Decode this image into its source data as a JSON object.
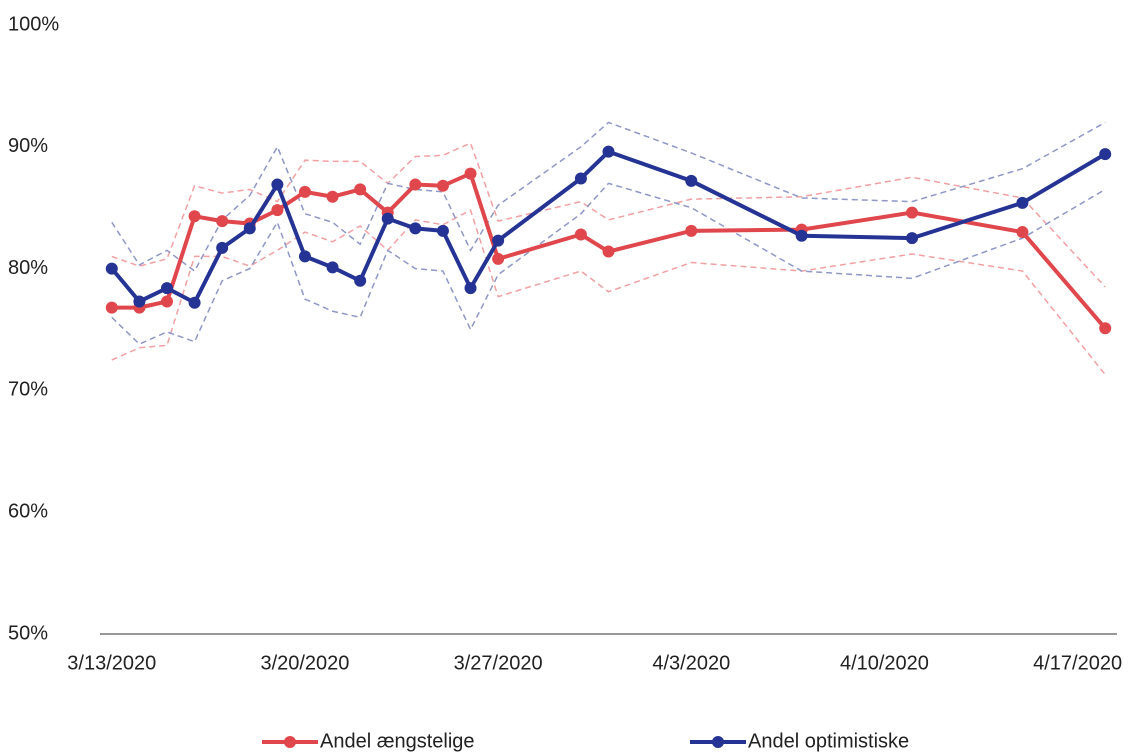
{
  "chart_data": {
    "type": "line",
    "x": [
      "2020-03-13",
      "2020-03-14",
      "2020-03-15",
      "2020-03-16",
      "2020-03-17",
      "2020-03-18",
      "2020-03-19",
      "2020-03-20",
      "2020-03-21",
      "2020-03-22",
      "2020-03-23",
      "2020-03-24",
      "2020-03-25",
      "2020-03-26",
      "2020-03-27",
      "2020-03-30",
      "2020-03-31",
      "2020-04-03",
      "2020-04-07",
      "2020-04-11",
      "2020-04-15",
      "2020-04-18"
    ],
    "series": [
      {
        "name": "Andel ængstelige",
        "color": "#e0474c",
        "values": [
          76.8,
          76.8,
          77.3,
          84.3,
          83.9,
          83.7,
          84.8,
          86.3,
          85.9,
          86.5,
          84.6,
          86.9,
          86.8,
          87.8,
          80.8,
          82.8,
          81.4,
          83.1,
          83.2,
          84.6,
          83.0,
          75.1
        ]
      },
      {
        "name": "Andel optimistiske",
        "color": "#253494",
        "values": [
          80.0,
          77.3,
          78.4,
          77.2,
          81.7,
          83.3,
          86.9,
          81.0,
          80.1,
          79.0,
          84.1,
          83.3,
          83.1,
          78.4,
          82.3,
          87.4,
          89.6,
          87.2,
          82.7,
          82.5,
          85.4,
          89.4
        ]
      },
      {
        "color": "#f2a0a2",
        "dashed": true,
        "values": [
          81.0,
          80.2,
          80.8,
          86.8,
          86.2,
          86.5,
          85.5,
          88.9,
          88.8,
          88.8,
          87.0,
          89.2,
          89.3,
          90.3,
          83.9,
          85.5,
          84.0,
          85.7,
          85.9,
          87.5,
          85.8,
          78.5
        ]
      },
      {
        "color": "#f2a0a2",
        "dashed": true,
        "values": [
          72.5,
          73.5,
          73.7,
          81.0,
          81.0,
          80.2,
          81.5,
          83.0,
          82.2,
          83.5,
          81.5,
          84.0,
          83.6,
          84.8,
          77.7,
          79.8,
          78.1,
          80.5,
          79.8,
          81.2,
          79.8,
          71.3
        ]
      },
      {
        "color": "#8f97c8",
        "dashed": true,
        "values": [
          83.8,
          80.3,
          81.5,
          79.8,
          84.0,
          86.0,
          90.0,
          84.5,
          83.8,
          82.0,
          87.0,
          86.5,
          86.3,
          81.5,
          85.2,
          90.0,
          92.0,
          89.5,
          85.8,
          85.5,
          88.2,
          92.0
        ]
      },
      {
        "color": "#8f97c8",
        "dashed": true,
        "values": [
          76.0,
          73.8,
          74.8,
          74.0,
          79.0,
          80.0,
          83.8,
          77.5,
          76.5,
          76.0,
          81.5,
          80.0,
          79.8,
          75.0,
          79.5,
          84.5,
          87.0,
          85.0,
          79.8,
          79.2,
          82.5,
          86.5
        ]
      }
    ],
    "xlim": [
      "2020-03-12T12:00",
      "2020-04-18T12:00"
    ],
    "xticks": [
      {
        "value": "2020-03-13",
        "label": "3/13/2020"
      },
      {
        "value": "2020-03-20",
        "label": "3/20/2020"
      },
      {
        "value": "2020-03-27",
        "label": "3/27/2020"
      },
      {
        "value": "2020-04-03",
        "label": "4/3/2020"
      },
      {
        "value": "2020-04-10",
        "label": "4/10/2020"
      },
      {
        "value": "2020-04-17",
        "label": "4/17/2020"
      }
    ],
    "ylim": [
      50,
      100
    ],
    "yticks": [
      {
        "value": 50,
        "label": "50%"
      },
      {
        "value": 60,
        "label": "60%"
      },
      {
        "value": 70,
        "label": "70%"
      },
      {
        "value": 80,
        "label": "80%"
      },
      {
        "value": 90,
        "label": "90%"
      },
      {
        "value": 100,
        "label": "100%"
      }
    ],
    "legend": "bottom"
  }
}
